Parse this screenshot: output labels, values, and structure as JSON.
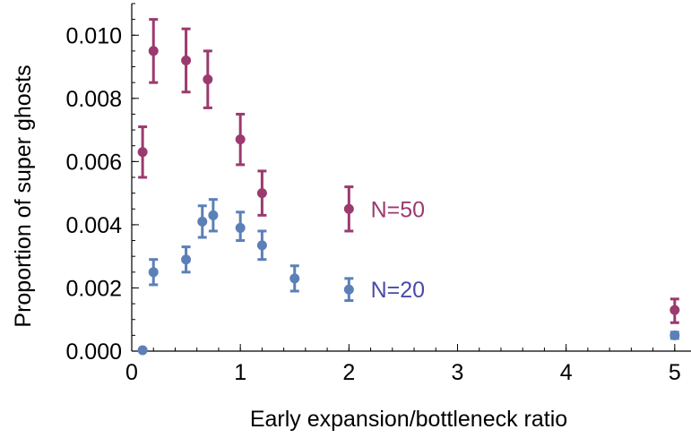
{
  "chart_data": {
    "type": "scatter",
    "title": "",
    "xlabel": "Early expansion/bottleneck ratio",
    "ylabel": "Proportion of super ghosts",
    "xlim": [
      0,
      5.15
    ],
    "ylim": [
      0,
      0.011
    ],
    "x_ticks": [
      0,
      1,
      2,
      3,
      4,
      5
    ],
    "x_tick_labels": [
      "0",
      "1",
      "2",
      "3",
      "4",
      "5"
    ],
    "y_ticks": [
      0,
      0.002,
      0.004,
      0.006,
      0.008,
      0.01
    ],
    "y_tick_labels": [
      "0.000",
      "0.002",
      "0.004",
      "0.006",
      "0.008",
      "0.010"
    ],
    "grid": false,
    "series": [
      {
        "name": "N=50",
        "color": "#9b3a6e",
        "points": [
          {
            "x": 0.1,
            "y": 0.0063,
            "lo": 0.0055,
            "hi": 0.0071
          },
          {
            "x": 0.2,
            "y": 0.0095,
            "lo": 0.0085,
            "hi": 0.0105
          },
          {
            "x": 0.5,
            "y": 0.0092,
            "lo": 0.0082,
            "hi": 0.0102
          },
          {
            "x": 0.7,
            "y": 0.0086,
            "lo": 0.0077,
            "hi": 0.0095
          },
          {
            "x": 1.0,
            "y": 0.0067,
            "lo": 0.0059,
            "hi": 0.0075
          },
          {
            "x": 1.2,
            "y": 0.005,
            "lo": 0.0043,
            "hi": 0.0057
          },
          {
            "x": 2.0,
            "y": 0.0045,
            "lo": 0.0038,
            "hi": 0.0052
          },
          {
            "x": 5.0,
            "y": 0.0013,
            "lo": 0.0009,
            "hi": 0.00165
          }
        ]
      },
      {
        "name": "N=20",
        "color": "#5b80b8",
        "points": [
          {
            "x": 0.1,
            "y": 3e-05,
            "lo": 3e-05,
            "hi": 3e-05
          },
          {
            "x": 0.2,
            "y": 0.0025,
            "lo": 0.0021,
            "hi": 0.0029
          },
          {
            "x": 0.5,
            "y": 0.0029,
            "lo": 0.0025,
            "hi": 0.0033
          },
          {
            "x": 0.65,
            "y": 0.0041,
            "lo": 0.0036,
            "hi": 0.0046
          },
          {
            "x": 0.75,
            "y": 0.0043,
            "lo": 0.0038,
            "hi": 0.0048
          },
          {
            "x": 1.0,
            "y": 0.0039,
            "lo": 0.0035,
            "hi": 0.0044
          },
          {
            "x": 1.2,
            "y": 0.00335,
            "lo": 0.0029,
            "hi": 0.0038
          },
          {
            "x": 1.5,
            "y": 0.0023,
            "lo": 0.0019,
            "hi": 0.0027
          },
          {
            "x": 2.0,
            "y": 0.00195,
            "lo": 0.0016,
            "hi": 0.0023
          },
          {
            "x": 5.0,
            "y": 0.0005,
            "lo": 0.0004,
            "hi": 0.0006
          }
        ]
      }
    ],
    "annotations": [
      {
        "text": "N=50",
        "color": "#9b3a6e",
        "x": 2.2,
        "y": 0.0045
      },
      {
        "text": "N=20",
        "color": "#4a4aa8",
        "x": 2.2,
        "y": 0.00195
      }
    ]
  }
}
